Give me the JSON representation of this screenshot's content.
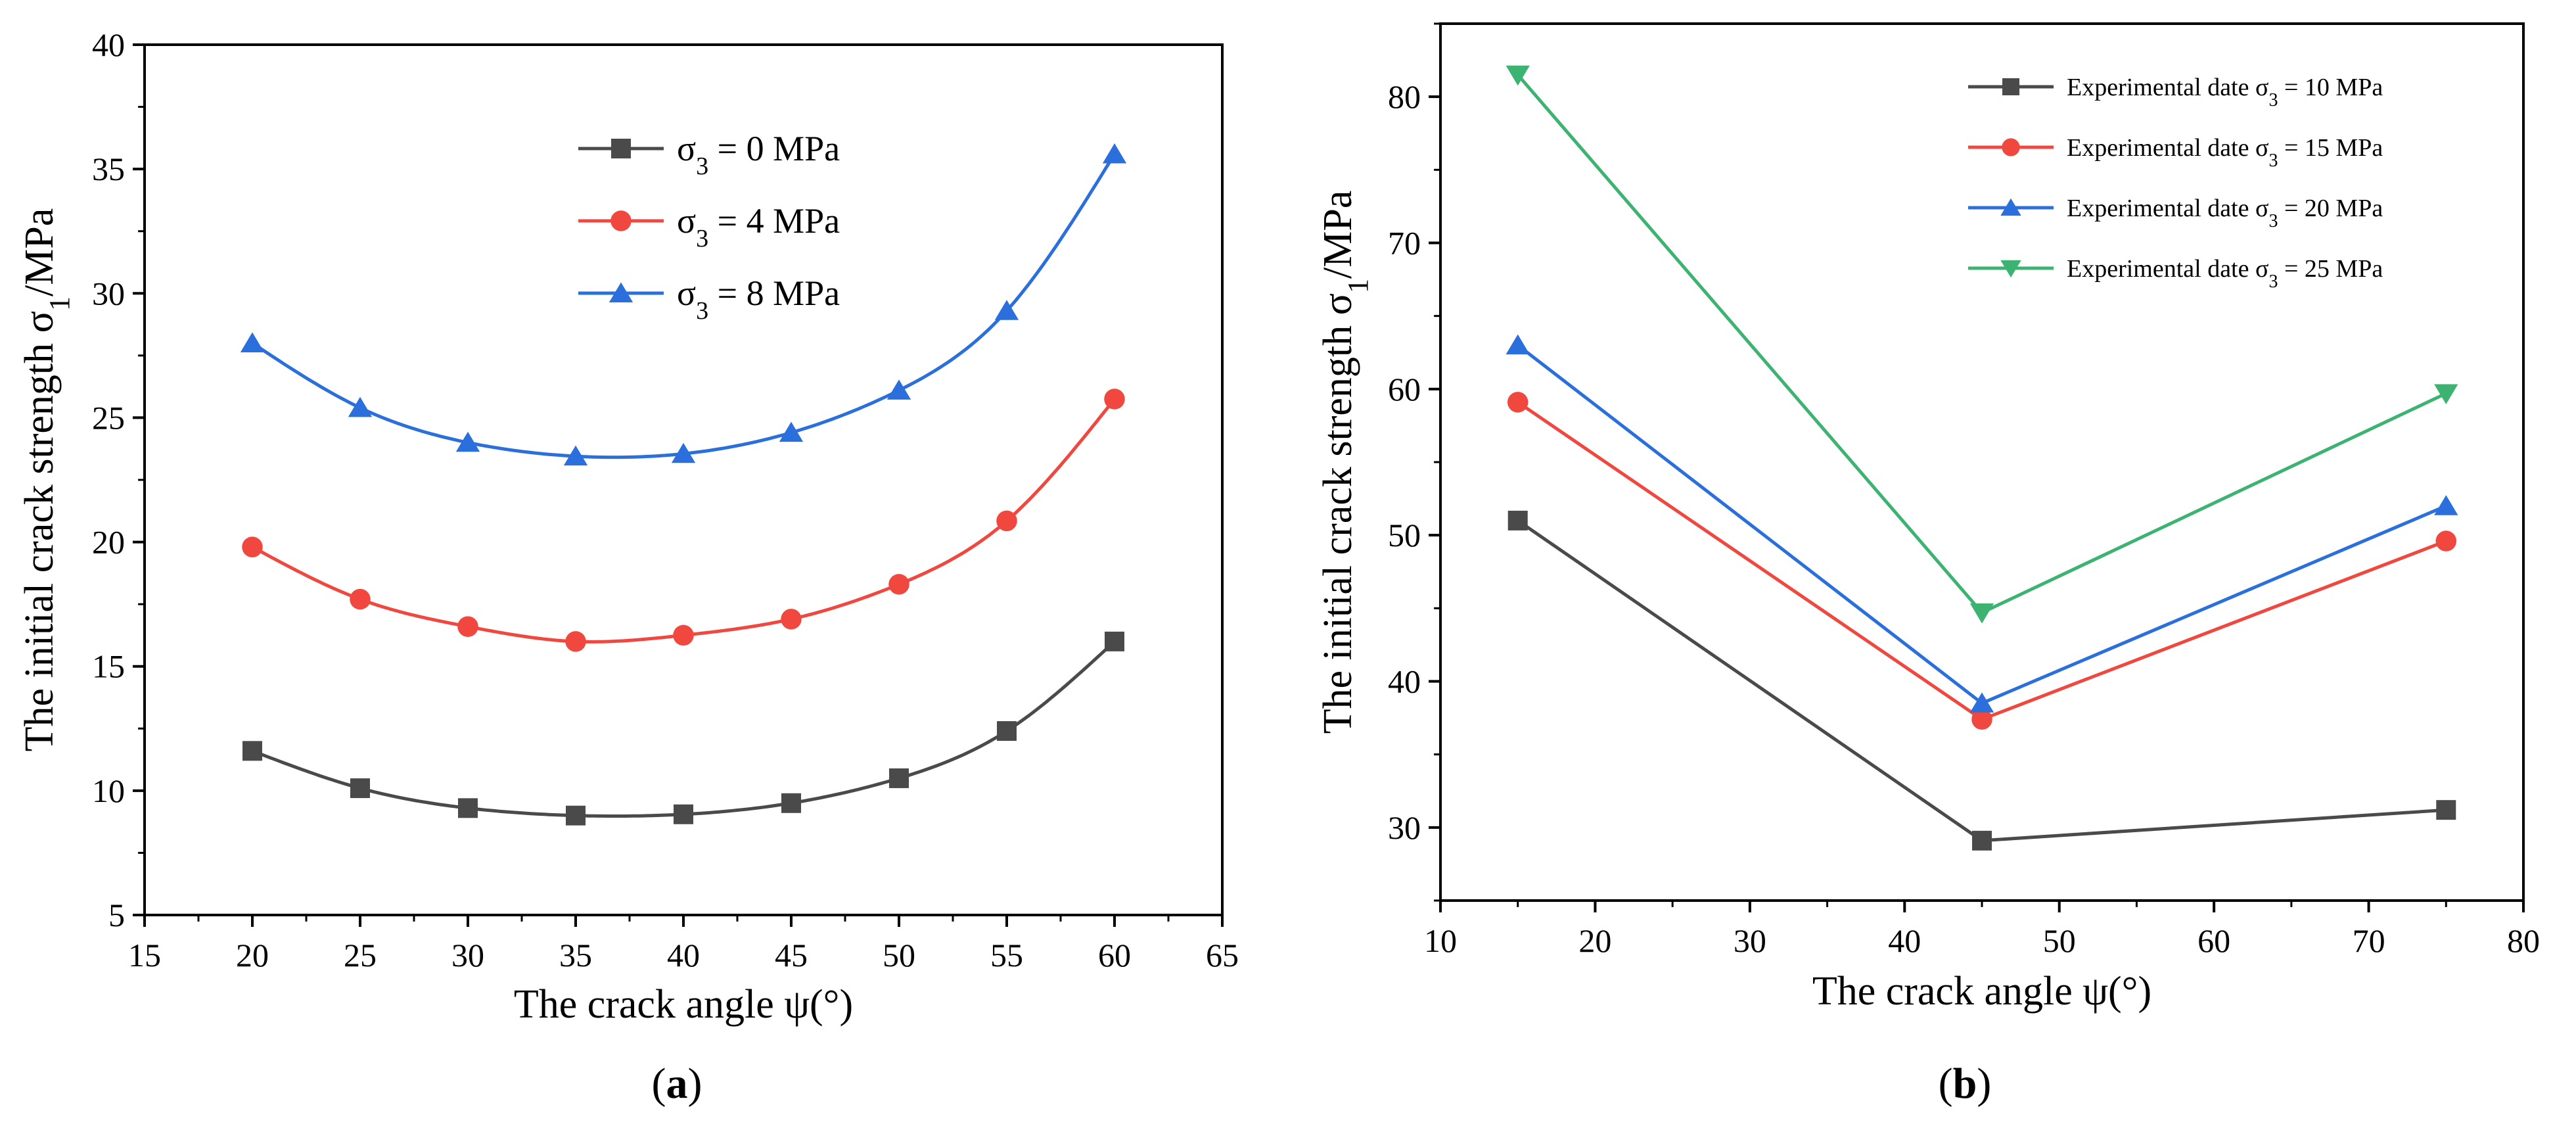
{
  "chart_data": [
    {
      "type": "line",
      "panel_label": "a",
      "xlabel": "The crack angle ψ(°)",
      "ylabel": "The initial crack strength  σ1/MPa",
      "ylabel_parts": {
        "pre": "The initial crack strength  σ",
        "sub": "1",
        "post": "/MPa"
      },
      "xlim": [
        15,
        65
      ],
      "ylim": [
        5,
        40
      ],
      "xticks": [
        15,
        20,
        25,
        30,
        35,
        40,
        45,
        50,
        55,
        60,
        65
      ],
      "yticks": [
        5,
        10,
        15,
        20,
        25,
        30,
        35,
        40
      ],
      "smooth": true,
      "legend_position": "upper-middle",
      "series": [
        {
          "name": "σ3 = 0 MPa",
          "name_parts": {
            "pre": "σ",
            "sub": "3",
            "post": " = 0 MPa"
          },
          "marker": "square",
          "color": "#4a4a4a",
          "x": [
            20,
            25,
            30,
            35,
            40,
            45,
            50,
            55,
            60
          ],
          "y": [
            11.6,
            10.1,
            9.3,
            9.0,
            9.05,
            9.5,
            10.5,
            12.4,
            16.0
          ]
        },
        {
          "name": "σ3 = 4 MPa",
          "name_parts": {
            "pre": "σ",
            "sub": "3",
            "post": " = 4 MPa"
          },
          "marker": "circle",
          "color": "#f0473f",
          "x": [
            20,
            25,
            30,
            35,
            40,
            45,
            50,
            55,
            60
          ],
          "y": [
            19.8,
            17.7,
            16.6,
            16.0,
            16.25,
            16.9,
            18.3,
            20.85,
            25.75
          ]
        },
        {
          "name": "σ3 = 8 MPa",
          "name_parts": {
            "pre": "σ",
            "sub": "3",
            "post": " = 8 MPa"
          },
          "marker": "triangle-up",
          "color": "#2a6fdb",
          "x": [
            20,
            25,
            30,
            35,
            40,
            45,
            50,
            55,
            60
          ],
          "y": [
            28.0,
            25.4,
            24.0,
            23.45,
            23.55,
            24.4,
            26.1,
            29.3,
            35.6
          ]
        }
      ]
    },
    {
      "type": "line",
      "panel_label": "b",
      "xlabel": "The crack angle ψ(°)",
      "ylabel": "The initial crack strength σ1/MPa",
      "ylabel_parts": {
        "pre": "The initial crack strength σ",
        "sub": "1",
        "post": "/MPa"
      },
      "xlim": [
        10,
        80
      ],
      "ylim": [
        25,
        85
      ],
      "xticks": [
        10,
        20,
        30,
        40,
        50,
        60,
        70,
        80
      ],
      "yticks": [
        30,
        40,
        50,
        60,
        70,
        80
      ],
      "smooth": false,
      "legend_position": "top-right",
      "series": [
        {
          "name": "Experimental date σ3 = 10 MPa",
          "name_parts": {
            "pre": "Experimental date σ",
            "sub": "3",
            "post": " = 10 MPa"
          },
          "marker": "square",
          "color": "#4a4a4a",
          "x": [
            15,
            45,
            75
          ],
          "y": [
            51.0,
            29.1,
            31.2
          ]
        },
        {
          "name": "Experimental date σ3 = 15 MPa",
          "name_parts": {
            "pre": "Experimental date σ",
            "sub": "3",
            "post": " = 15 MPa"
          },
          "marker": "circle",
          "color": "#f0473f",
          "x": [
            15,
            45,
            75
          ],
          "y": [
            59.1,
            37.4,
            49.6
          ]
        },
        {
          "name": "Experimental date σ3 = 20 MPa",
          "name_parts": {
            "pre": "Experimental date σ",
            "sub": "3",
            "post": " = 20 MPa"
          },
          "marker": "triangle-up",
          "color": "#2a6fdb",
          "x": [
            15,
            45,
            75
          ],
          "y": [
            63.0,
            38.5,
            52.0
          ]
        },
        {
          "name": "Experimental date σ3 = 25 MPa",
          "name_parts": {
            "pre": "Experimental date σ",
            "sub": "3",
            "post": " = 25 MPa"
          },
          "marker": "triangle-down",
          "color": "#3cb371",
          "x": [
            15,
            45,
            75
          ],
          "y": [
            81.5,
            44.7,
            59.7
          ]
        }
      ]
    }
  ]
}
